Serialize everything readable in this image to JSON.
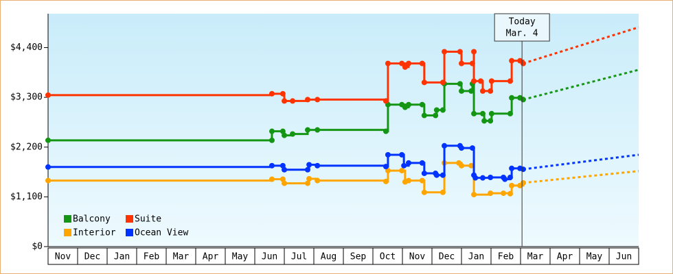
{
  "chart_data": {
    "type": "step-line",
    "xlim": [
      0,
      20
    ],
    "ylim": [
      0,
      5150
    ],
    "yticks": [
      {
        "value": 0,
        "label": "$0"
      },
      {
        "value": 1100,
        "label": "$1,100"
      },
      {
        "value": 2200,
        "label": "$2,200"
      },
      {
        "value": 3300,
        "label": "$3,300"
      },
      {
        "value": 4400,
        "label": "$4,400"
      }
    ],
    "xticks": [
      {
        "value": 0.5,
        "label": "Nov"
      },
      {
        "value": 1.5,
        "label": "Dec"
      },
      {
        "value": 2.5,
        "label": "Jan"
      },
      {
        "value": 3.5,
        "label": "Feb"
      },
      {
        "value": 4.5,
        "label": "Mar"
      },
      {
        "value": 5.5,
        "label": "Apr"
      },
      {
        "value": 6.5,
        "label": "May"
      },
      {
        "value": 7.5,
        "label": "Jun"
      },
      {
        "value": 8.5,
        "label": "Jul"
      },
      {
        "value": 9.5,
        "label": "Aug"
      },
      {
        "value": 10.5,
        "label": "Sep"
      },
      {
        "value": 11.5,
        "label": "Oct"
      },
      {
        "value": 12.5,
        "label": "Nov"
      },
      {
        "value": 13.5,
        "label": "Dec"
      },
      {
        "value": 14.5,
        "label": "Jan"
      },
      {
        "value": 15.5,
        "label": "Feb"
      },
      {
        "value": 16.5,
        "label": "Mar"
      },
      {
        "value": 17.5,
        "label": "Apr"
      },
      {
        "value": 18.5,
        "label": "May"
      },
      {
        "value": 19.5,
        "label": "Jun"
      }
    ],
    "today": {
      "x": 16.05,
      "label": [
        "Today",
        "Mar. 4"
      ]
    },
    "series": [
      {
        "name": "Balcony",
        "color": "#149614",
        "x": [
          0,
          7.58,
          7.58,
          7.95,
          8.0,
          8.28,
          8.79,
          9.12,
          11.44,
          11.51,
          11.98,
          12.09,
          12.21,
          12.67,
          12.74,
          13.12,
          13.16,
          13.37,
          13.42,
          13.95,
          14.0,
          14.33,
          14.37,
          14.42,
          14.72,
          14.77,
          14.98,
          15.02,
          15.65,
          15.7,
          15.98,
          16.09
        ],
        "values": [
          2350,
          2350,
          2550,
          2550,
          2460,
          2490,
          2580,
          2580,
          2550,
          3140,
          3140,
          3080,
          3140,
          3140,
          2900,
          2900,
          3020,
          3020,
          3600,
          3600,
          3440,
          3440,
          3600,
          2940,
          2940,
          2780,
          2780,
          2940,
          2940,
          3290,
          3290,
          3250
        ],
        "forecast": 3910
      },
      {
        "name": "Suite",
        "color": "#ff3300",
        "x": [
          0,
          7.58,
          7.95,
          8.0,
          8.28,
          8.79,
          9.12,
          11.44,
          11.51,
          11.98,
          12.09,
          12.21,
          12.67,
          12.74,
          13.37,
          13.42,
          13.95,
          14.0,
          14.37,
          14.42,
          14.42,
          14.65,
          14.72,
          14.98,
          15.02,
          15.65,
          15.7,
          15.98,
          16.09
        ],
        "values": [
          3350,
          3380,
          3380,
          3220,
          3220,
          3250,
          3250,
          3220,
          4050,
          4050,
          3970,
          4050,
          4050,
          3630,
          3630,
          4310,
          4310,
          4050,
          4050,
          4310,
          3660,
          3660,
          3440,
          3440,
          3660,
          3660,
          4110,
          4110,
          4050
        ],
        "forecast": 4850
      },
      {
        "name": "Interior",
        "color": "#ffa500",
        "x": [
          0,
          7.58,
          7.95,
          8.0,
          8.79,
          8.84,
          9.12,
          11.44,
          11.51,
          11.98,
          12.09,
          12.21,
          12.67,
          12.74,
          13.37,
          13.42,
          13.91,
          14.0,
          14.33,
          14.42,
          14.98,
          15.42,
          15.65,
          15.7,
          15.98,
          16.09
        ],
        "values": [
          1460,
          1490,
          1490,
          1400,
          1400,
          1500,
          1460,
          1440,
          1680,
          1680,
          1430,
          1460,
          1460,
          1200,
          1200,
          1850,
          1850,
          1790,
          1790,
          1150,
          1180,
          1180,
          1170,
          1350,
          1350,
          1410
        ],
        "forecast": 1670
      },
      {
        "name": "Ocean View",
        "color": "#0033ff",
        "x": [
          0,
          7.58,
          7.95,
          8.0,
          8.79,
          8.84,
          9.12,
          11.44,
          11.51,
          11.98,
          12.05,
          12.21,
          12.67,
          12.74,
          13.12,
          13.16,
          13.37,
          13.42,
          13.95,
          14.0,
          14.37,
          14.42,
          14.47,
          14.72,
          14.98,
          15.42,
          15.47,
          15.65,
          15.7,
          15.98,
          16.09
        ],
        "values": [
          1760,
          1790,
          1790,
          1700,
          1700,
          1810,
          1790,
          1770,
          2030,
          2030,
          1790,
          1850,
          1850,
          1620,
          1620,
          1580,
          1580,
          2230,
          2230,
          2180,
          2180,
          1580,
          1520,
          1520,
          1530,
          1530,
          1490,
          1530,
          1730,
          1730,
          1710
        ],
        "forecast": 2030
      }
    ]
  }
}
